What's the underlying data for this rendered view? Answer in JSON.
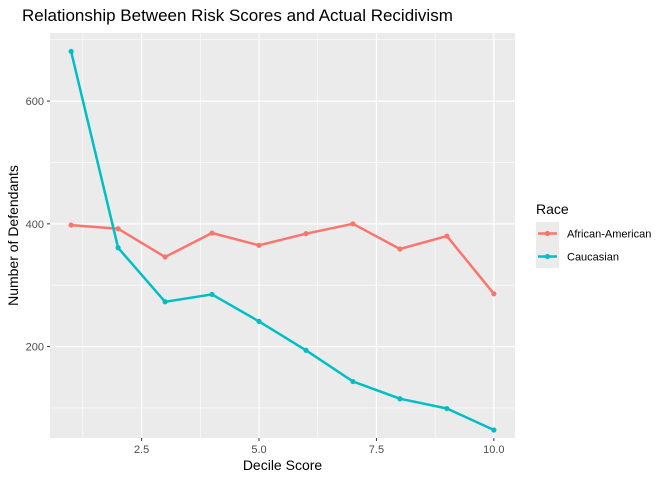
{
  "chart_data": {
    "type": "line",
    "title": "Relationship Between Risk Scores and Actual Recidivism",
    "xlabel": "Decile Score",
    "ylabel": "Number of Defendants",
    "x": [
      1,
      2,
      3,
      4,
      5,
      6,
      7,
      8,
      9,
      10
    ],
    "xlim": [
      0.55,
      10.45
    ],
    "ylim": [
      51,
      711
    ],
    "x_ticks": [
      2.5,
      5.0,
      7.5,
      10.0
    ],
    "x_tick_labels": [
      "2.5",
      "5.0",
      "7.5",
      "10.0"
    ],
    "y_ticks": [
      200,
      400,
      600
    ],
    "y_tick_labels": [
      "200",
      "400",
      "600"
    ],
    "grid": true,
    "legend": {
      "title": "Race",
      "position": "right"
    },
    "series": [
      {
        "name": "African-American",
        "color": "#F8766D",
        "values": [
          398,
          392,
          346,
          385,
          365,
          384,
          400,
          359,
          380,
          286
        ]
      },
      {
        "name": "Caucasian",
        "color": "#00BFC4",
        "values": [
          681,
          361,
          273,
          285,
          241,
          194,
          143,
          115,
          99,
          64
        ]
      }
    ]
  }
}
